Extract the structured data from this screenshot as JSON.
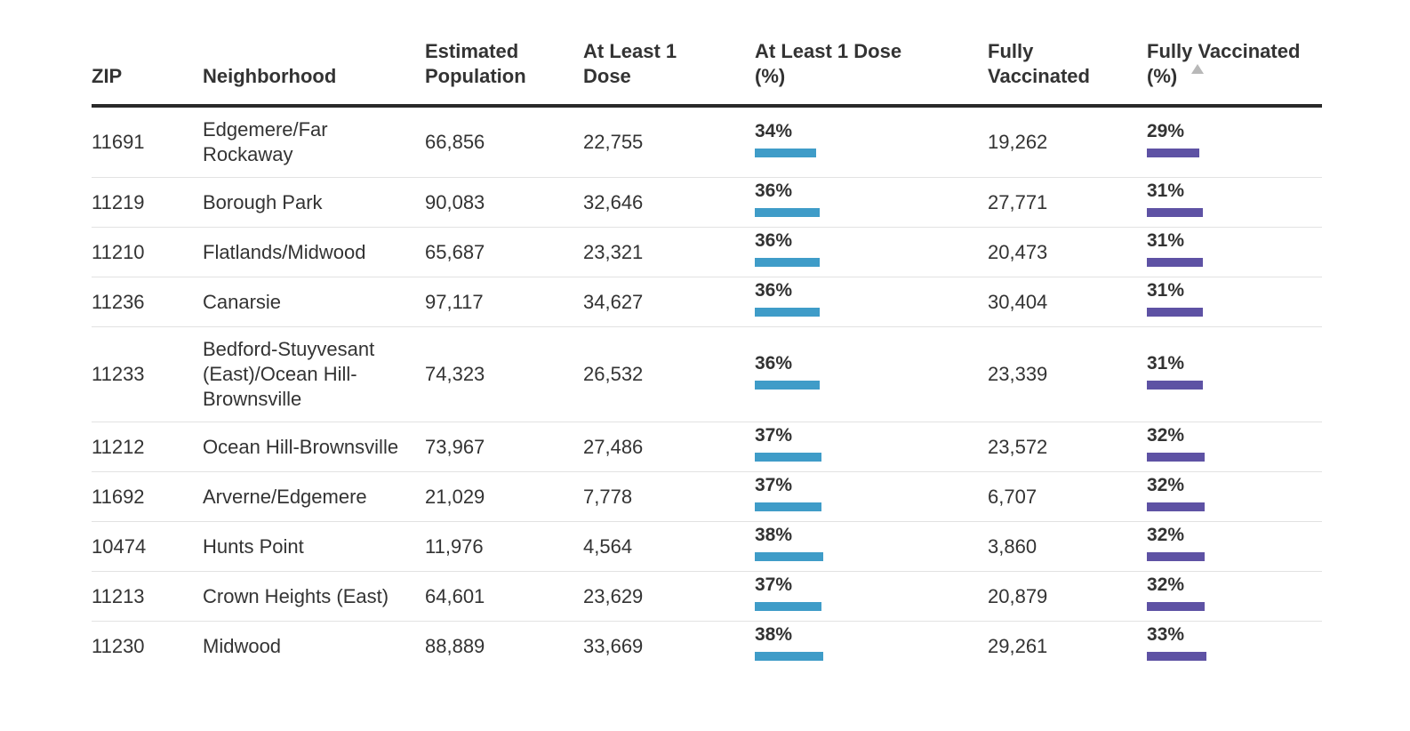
{
  "colors": {
    "dose_bar": "#3f9cc8",
    "full_bar": "#5e52a4",
    "text": "#333333",
    "rule": "#2a2a2a"
  },
  "header": {
    "zip": "ZIP",
    "neighborhood": "Neighborhood",
    "population_line1": "Estimated",
    "population_line2": "Population",
    "dose_line1": "At Least 1",
    "dose_line2": "Dose",
    "dose_pct_line1": "At Least 1 Dose",
    "dose_pct_line2": "(%)",
    "full_line1": "Fully",
    "full_line2": "Vaccinated",
    "full_pct_line1": "Fully Vaccinated",
    "full_pct_line2": "(%)",
    "sort_icon": "sort-ascending-icon"
  },
  "chart_data": {
    "type": "table",
    "bar_scale_max_percent": 100,
    "columns": [
      "ZIP",
      "Neighborhood",
      "Estimated Population",
      "At Least 1 Dose",
      "At Least 1 Dose (%)",
      "Fully Vaccinated",
      "Fully Vaccinated (%)"
    ],
    "sorted_by": "Fully Vaccinated (%)",
    "sort_direction": "ascending",
    "rows": [
      {
        "zip": "11691",
        "neighborhood": "Edgemere/Far Rockaway",
        "population": "66,856",
        "dose": "22,755",
        "dose_pct": "34%",
        "dose_pct_value": 34,
        "full": "19,262",
        "full_pct": "29%",
        "full_pct_value": 29
      },
      {
        "zip": "11219",
        "neighborhood": "Borough Park",
        "population": "90,083",
        "dose": "32,646",
        "dose_pct": "36%",
        "dose_pct_value": 36,
        "full": "27,771",
        "full_pct": "31%",
        "full_pct_value": 31
      },
      {
        "zip": "11210",
        "neighborhood": "Flatlands/Midwood",
        "population": "65,687",
        "dose": "23,321",
        "dose_pct": "36%",
        "dose_pct_value": 36,
        "full": "20,473",
        "full_pct": "31%",
        "full_pct_value": 31
      },
      {
        "zip": "11236",
        "neighborhood": "Canarsie",
        "population": "97,117",
        "dose": "34,627",
        "dose_pct": "36%",
        "dose_pct_value": 36,
        "full": "30,404",
        "full_pct": "31%",
        "full_pct_value": 31
      },
      {
        "zip": "11233",
        "neighborhood": "Bedford-Stuyvesant (East)/Ocean Hill-Brownsville",
        "population": "74,323",
        "dose": "26,532",
        "dose_pct": "36%",
        "dose_pct_value": 36,
        "full": "23,339",
        "full_pct": "31%",
        "full_pct_value": 31
      },
      {
        "zip": "11212",
        "neighborhood": "Ocean Hill-Brownsville",
        "population": "73,967",
        "dose": "27,486",
        "dose_pct": "37%",
        "dose_pct_value": 37,
        "full": "23,572",
        "full_pct": "32%",
        "full_pct_value": 32
      },
      {
        "zip": "11692",
        "neighborhood": "Arverne/Edgemere",
        "population": "21,029",
        "dose": "7,778",
        "dose_pct": "37%",
        "dose_pct_value": 37,
        "full": "6,707",
        "full_pct": "32%",
        "full_pct_value": 32
      },
      {
        "zip": "10474",
        "neighborhood": "Hunts Point",
        "population": "11,976",
        "dose": "4,564",
        "dose_pct": "38%",
        "dose_pct_value": 38,
        "full": "3,860",
        "full_pct": "32%",
        "full_pct_value": 32
      },
      {
        "zip": "11213",
        "neighborhood": "Crown Heights (East)",
        "population": "64,601",
        "dose": "23,629",
        "dose_pct": "37%",
        "dose_pct_value": 37,
        "full": "20,879",
        "full_pct": "32%",
        "full_pct_value": 32
      },
      {
        "zip": "11230",
        "neighborhood": "Midwood",
        "population": "88,889",
        "dose": "33,669",
        "dose_pct": "38%",
        "dose_pct_value": 38,
        "full": "29,261",
        "full_pct": "33%",
        "full_pct_value": 33
      }
    ]
  }
}
